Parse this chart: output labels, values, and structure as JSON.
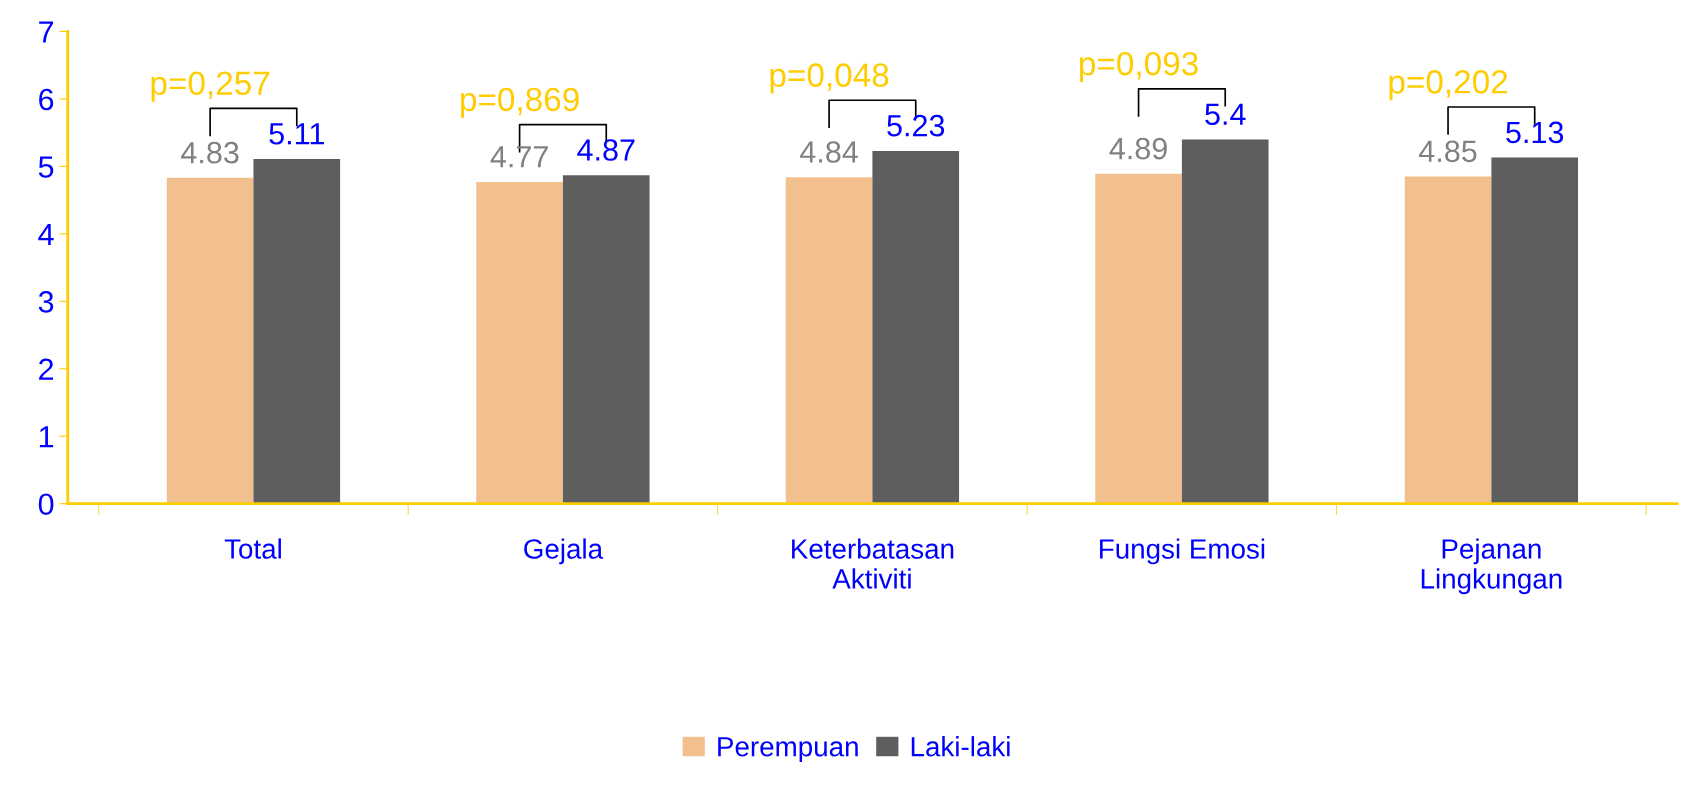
{
  "chart_data": {
    "type": "bar",
    "categories": [
      "Total",
      "Gejala",
      "Keterbatasan\nAktiviti",
      "Fungsi Emosi",
      "Pejanan\nLingkungan"
    ],
    "series": [
      {
        "name": "Perempuan",
        "color": "#f2c08e",
        "values": [
          4.83,
          4.77,
          4.84,
          4.89,
          4.85
        ]
      },
      {
        "name": "Laki-laki",
        "color": "#5e5e5e",
        "values": [
          5.11,
          4.87,
          5.23,
          5.4,
          5.13
        ]
      }
    ],
    "ylim": [
      0,
      7
    ],
    "yticks": [
      0,
      1,
      2,
      3,
      4,
      5,
      6,
      7
    ],
    "data_labels": true,
    "grid": false,
    "legend": "bottom",
    "annotations": [
      "p=0,257",
      "p=0,869",
      "p=0,048",
      "p=0,093",
      "p=0,202"
    ]
  }
}
